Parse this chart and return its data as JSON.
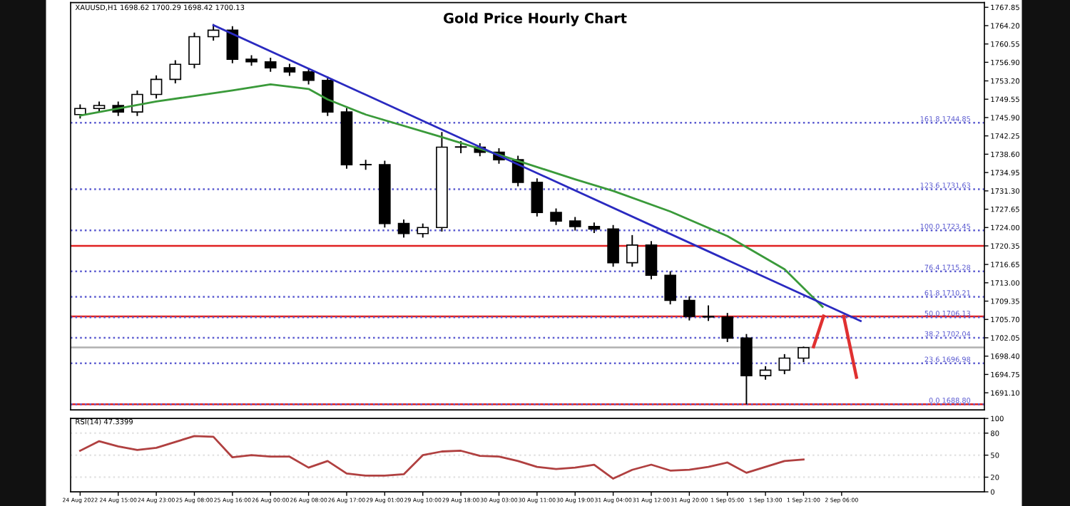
{
  "chart_data": [
    {
      "type": "candlestick",
      "title": "Gold Price Hourly Chart",
      "annotations": [
        "XAUUSD,H1 1698.62 1700.29 1698.42 1700.13"
      ],
      "categories": [
        null,
        null,
        null,
        null,
        null,
        null,
        null,
        null,
        null,
        null,
        null,
        null,
        null,
        null,
        null,
        null,
        null,
        null,
        null,
        null,
        null,
        null,
        null,
        null,
        null,
        null,
        null,
        null,
        null,
        null,
        null,
        null,
        null,
        null,
        null,
        null,
        null,
        null,
        null,
        null,
        null,
        null,
        null,
        null,
        null,
        null,
        null,
        null
      ],
      "ohlc": [
        [
          1746.5,
          1748.5,
          1745.7,
          1747.7
        ],
        [
          1747.7,
          1749.1,
          1746.9,
          1748.3
        ],
        [
          1748.3,
          1749.1,
          1746.2,
          1747.0
        ],
        [
          1747.0,
          1751.3,
          1746.2,
          1750.5
        ],
        [
          1750.5,
          1754.3,
          1749.7,
          1753.5
        ],
        [
          1753.5,
          1757.3,
          1752.7,
          1756.5
        ],
        [
          1756.5,
          1762.8,
          1755.7,
          1762.0
        ],
        [
          1762.0,
          1764.5,
          1761.2,
          1763.3
        ],
        [
          1763.3,
          1764.1,
          1756.7,
          1757.5
        ],
        [
          1757.5,
          1758.3,
          1756.2,
          1757.0
        ],
        [
          1757.0,
          1757.8,
          1755.0,
          1755.8
        ],
        [
          1755.8,
          1756.6,
          1754.2,
          1755.0
        ],
        [
          1755.0,
          1755.8,
          1752.5,
          1753.3
        ],
        [
          1753.3,
          1754.1,
          1746.2,
          1747.0
        ],
        [
          1747.0,
          1747.8,
          1735.7,
          1736.5
        ],
        [
          1736.5,
          1737.5,
          1735.5,
          1736.5
        ],
        [
          1736.5,
          1737.3,
          1724.0,
          1724.8
        ],
        [
          1724.8,
          1725.6,
          1722.0,
          1722.8
        ],
        [
          1722.8,
          1724.8,
          1722.0,
          1724.0
        ],
        [
          1724.0,
          1743.0,
          1723.2,
          1740.0
        ],
        [
          1740.0,
          1741.2,
          1738.8,
          1740.0
        ],
        [
          1740.0,
          1740.8,
          1738.2,
          1739.0
        ],
        [
          1739.0,
          1739.8,
          1736.7,
          1737.5
        ],
        [
          1737.5,
          1738.3,
          1732.2,
          1733.0
        ],
        [
          1733.0,
          1733.8,
          1726.2,
          1727.0
        ],
        [
          1727.0,
          1727.8,
          1724.5,
          1725.3
        ],
        [
          1725.3,
          1726.1,
          1723.4,
          1724.2
        ],
        [
          1724.2,
          1725.0,
          1722.9,
          1723.7
        ],
        [
          1723.7,
          1724.5,
          1716.2,
          1717.0
        ],
        [
          1717.0,
          1722.5,
          1716.2,
          1720.5
        ],
        [
          1720.5,
          1721.3,
          1713.7,
          1714.5
        ],
        [
          1714.5,
          1715.3,
          1708.7,
          1709.5
        ],
        [
          1709.5,
          1710.3,
          1705.5,
          1706.3
        ],
        [
          1706.3,
          1708.5,
          1705.4,
          1706.2
        ],
        [
          1706.2,
          1707.0,
          1701.2,
          1702.0
        ],
        [
          1702.0,
          1702.8,
          1688.8,
          1694.5
        ],
        [
          1694.5,
          1696.4,
          1693.7,
          1695.6
        ],
        [
          1695.6,
          1698.8,
          1694.8,
          1698.0
        ],
        [
          1698.0,
          1700.3,
          1697.2,
          1700.1
        ],
        null,
        null,
        null,
        null,
        null,
        null,
        null,
        null,
        null
      ],
      "series": [
        {
          "type": "line",
          "color": "#3a9a3a",
          "values": [
            1746.3,
            null,
            null,
            null,
            1749.1,
            null,
            null,
            null,
            1751.3,
            null,
            1752.5,
            null,
            1751.6,
            1749.5,
            null,
            1746.5,
            null,
            null,
            null,
            1742.0,
            null,
            null,
            1738.5,
            null,
            null,
            null,
            1733.6,
            null,
            1731.3,
            null,
            null,
            1727.2,
            null,
            null,
            1722.3,
            null,
            null,
            1715.7,
            null,
            1708.2,
            null,
            null,
            null,
            null,
            null,
            null,
            null,
            null
          ]
        },
        {
          "type": "line",
          "color": "#2a2ac0",
          "values": [
            null,
            null,
            null,
            null,
            null,
            null,
            null,
            1764.3,
            null,
            null,
            null,
            null,
            null,
            null,
            null,
            null,
            null,
            null,
            null,
            null,
            null,
            null,
            null,
            null,
            null,
            null,
            null,
            null,
            null,
            null,
            null,
            null,
            null,
            null,
            null,
            null,
            null,
            null,
            null,
            null,
            null,
            1705.4,
            null,
            null,
            null,
            null,
            null,
            null
          ]
        }
      ],
      "ref_lines": [
        {
          "axis": "y",
          "value": 1720.35,
          "color": "#e02020",
          "line_style": "solid"
        },
        {
          "axis": "y",
          "value": 1706.3,
          "color": "#e02020",
          "line_style": "solid"
        },
        {
          "axis": "y",
          "value": 1688.8,
          "color": "#e02020",
          "line_style": "solid"
        },
        {
          "axis": "y",
          "value": 1700.13,
          "color": "#b0b0b0",
          "line_style": "solid"
        },
        {
          "axis": "y",
          "value": 1744.85,
          "label": "161.8 1744.85",
          "color": "#5a5ad0",
          "line_style": "dotted"
        },
        {
          "axis": "y",
          "value": 1731.63,
          "label": "123.6 1731.63",
          "color": "#5a5ad0",
          "line_style": "dotted"
        },
        {
          "axis": "y",
          "value": 1723.45,
          "label": "100.0 1723.45",
          "color": "#5a5ad0",
          "line_style": "dotted"
        },
        {
          "axis": "y",
          "value": 1715.28,
          "label": "76.4 1715.28",
          "color": "#5a5ad0",
          "line_style": "dotted"
        },
        {
          "axis": "y",
          "value": 1710.21,
          "label": "61.8 1710.21",
          "color": "#5a5ad0",
          "line_style": "dotted"
        },
        {
          "axis": "y",
          "value": 1706.13,
          "label": "50.0 1706.13",
          "color": "#5a5ad0",
          "line_style": "dotted"
        },
        {
          "axis": "y",
          "value": 1702.04,
          "label": "38.2 1702.04",
          "color": "#5a5ad0",
          "line_style": "dotted"
        },
        {
          "axis": "y",
          "value": 1696.98,
          "label": "23.6 1696.98",
          "color": "#5a5ad0",
          "line_style": "dotted"
        },
        {
          "axis": "y",
          "value": 1688.8,
          "label": "0.0 1688.80",
          "color": "#5a5ad0",
          "line_style": "dotted"
        }
      ],
      "ylim": [
        1687.7,
        1768.8
      ],
      "yticks": [
        {
          "value": 1767.85,
          "label": "1767.85"
        },
        {
          "value": 1764.2,
          "label": "1764.20"
        },
        {
          "value": 1760.55,
          "label": "1760.55"
        },
        {
          "value": 1756.9,
          "label": "1756.90"
        },
        {
          "value": 1753.2,
          "label": "1753.20"
        },
        {
          "value": 1749.55,
          "label": "1749.55"
        },
        {
          "value": 1745.9,
          "label": "1745.90"
        },
        {
          "value": 1742.25,
          "label": "1742.25"
        },
        {
          "value": 1738.6,
          "label": "1738.60"
        },
        {
          "value": 1734.95,
          "label": "1734.95"
        },
        {
          "value": 1731.3,
          "label": "1731.30"
        },
        {
          "value": 1727.65,
          "label": "1727.65"
        },
        {
          "value": 1724.0,
          "label": "1724.00"
        },
        {
          "value": 1720.35,
          "label": "1720.35"
        },
        {
          "value": 1716.65,
          "label": "1716.65"
        },
        {
          "value": 1713.0,
          "label": "1713.00"
        },
        {
          "value": 1709.35,
          "label": "1709.35"
        },
        {
          "value": 1705.7,
          "label": "1705.70"
        },
        {
          "value": 1702.05,
          "label": "1702.05"
        },
        {
          "value": 1698.4,
          "label": "1698.40"
        },
        {
          "value": 1694.75,
          "label": "1694.75"
        },
        {
          "value": 1691.1,
          "label": "1691.10"
        }
      ],
      "tick_labels": "y",
      "grid": false,
      "legend": false
    },
    {
      "type": "line",
      "annotations": [
        "RSI(14) 47.3399"
      ],
      "categories": [
        "24 Aug 2022",
        null,
        "24 Aug 15:00",
        null,
        "24 Aug 23:00",
        null,
        "25 Aug 08:00",
        null,
        "25 Aug 16:00",
        null,
        "26 Aug 00:00",
        null,
        "26 Aug 08:00",
        null,
        "26 Aug 17:00",
        null,
        "29 Aug 01:00",
        null,
        "29 Aug 10:00",
        null,
        "29 Aug 18:00",
        null,
        "30 Aug 03:00",
        null,
        "30 Aug 11:00",
        null,
        "30 Aug 19:00",
        null,
        "31 Aug 04:00",
        null,
        "31 Aug 12:00",
        null,
        "31 Aug 20:00",
        null,
        "1 Sep 05:00",
        null,
        "1 Sep 13:00",
        null,
        "1 Sep 21:00",
        null,
        "2 Sep 06:00",
        null,
        null,
        null,
        null,
        null,
        null,
        null
      ],
      "series": [
        {
          "color": "#b04040",
          "values": [
            56,
            69,
            62,
            57,
            60,
            68,
            76,
            75,
            47,
            50,
            48,
            48,
            33,
            42,
            25,
            22,
            22,
            24,
            50,
            55,
            56,
            49,
            48,
            42,
            34,
            31,
            33,
            37,
            18,
            30,
            37,
            29,
            30,
            34,
            40,
            26,
            34,
            42,
            44,
            null,
            null,
            null,
            null,
            null,
            null,
            null,
            null,
            null
          ]
        }
      ],
      "ref_lines": [
        {
          "axis": "y",
          "value": 80,
          "color": "#e4e4e4",
          "line_style": "dotted"
        },
        {
          "axis": "y",
          "value": 50,
          "color": "#e4e4e4",
          "line_style": "dotted"
        },
        {
          "axis": "y",
          "value": 20,
          "color": "#e4e4e4",
          "line_style": "dotted"
        }
      ],
      "ylim": [
        0,
        100
      ],
      "yticks": [
        0,
        20,
        50,
        80,
        100
      ],
      "grid": false,
      "legend": false
    }
  ]
}
